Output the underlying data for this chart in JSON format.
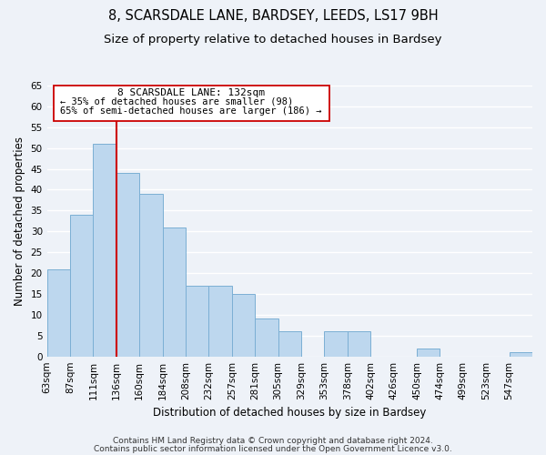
{
  "title": "8, SCARSDALE LANE, BARDSEY, LEEDS, LS17 9BH",
  "subtitle": "Size of property relative to detached houses in Bardsey",
  "xlabel": "Distribution of detached houses by size in Bardsey",
  "ylabel": "Number of detached properties",
  "bar_labels": [
    "63sqm",
    "87sqm",
    "111sqm",
    "136sqm",
    "160sqm",
    "184sqm",
    "208sqm",
    "232sqm",
    "257sqm",
    "281sqm",
    "305sqm",
    "329sqm",
    "353sqm",
    "378sqm",
    "402sqm",
    "426sqm",
    "450sqm",
    "474sqm",
    "499sqm",
    "523sqm",
    "547sqm"
  ],
  "bar_values": [
    21,
    34,
    51,
    44,
    39,
    31,
    17,
    17,
    15,
    9,
    6,
    0,
    6,
    6,
    0,
    0,
    2,
    0,
    0,
    0,
    1
  ],
  "bar_color": "#bdd7ee",
  "bar_edge_color": "#7bafd4",
  "vline_x": 3,
  "vline_color": "#cc0000",
  "ylim": [
    0,
    65
  ],
  "yticks": [
    0,
    5,
    10,
    15,
    20,
    25,
    30,
    35,
    40,
    45,
    50,
    55,
    60,
    65
  ],
  "annotation_title": "8 SCARSDALE LANE: 132sqm",
  "annotation_line1": "← 35% of detached houses are smaller (98)",
  "annotation_line2": "65% of semi-detached houses are larger (186) →",
  "annotation_box_color": "#ffffff",
  "annotation_border_color": "#cc0000",
  "footer_line1": "Contains HM Land Registry data © Crown copyright and database right 2024.",
  "footer_line2": "Contains public sector information licensed under the Open Government Licence v3.0.",
  "bg_color": "#eef2f8",
  "grid_color": "#ffffff",
  "title_fontsize": 10.5,
  "subtitle_fontsize": 9.5,
  "axis_fontsize": 8.5,
  "tick_fontsize": 7.5,
  "footer_fontsize": 6.5
}
